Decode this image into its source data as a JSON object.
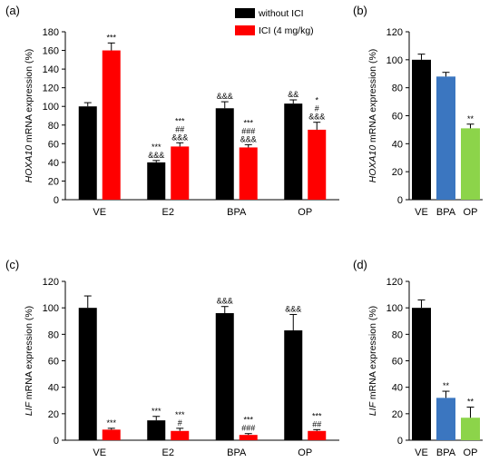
{
  "chart_data": [
    {
      "panel": "(a)",
      "type": "bar",
      "categories": [
        "VE",
        "E2",
        "BPA",
        "OP"
      ],
      "ylabel_italic": "HOXA10",
      "ylabel_rest": " mRNA expression (%)",
      "ylim": [
        0,
        180
      ],
      "yticks": [
        0,
        20,
        40,
        60,
        80,
        100,
        120,
        140,
        160,
        180
      ],
      "series": [
        {
          "name": "without ICI",
          "color": "#000000",
          "values": [
            100,
            40,
            98,
            103
          ],
          "errors": [
            4,
            2,
            7,
            4
          ],
          "marks": [
            "",
            "***\n&&&",
            "&&&",
            "&&"
          ]
        },
        {
          "name": "ICI (4 mg/kg)",
          "color": "#ff0000",
          "values": [
            160,
            57,
            56,
            75
          ],
          "errors": [
            8,
            4,
            3,
            8
          ],
          "marks": [
            "***",
            "***\n##\n&&&",
            "***\n###\n&&&",
            "*\n#\n&&&"
          ]
        }
      ]
    },
    {
      "panel": "(b)",
      "type": "bar",
      "categories": [
        "VE",
        "BPA",
        "OP"
      ],
      "ylabel_italic": "HOXA10",
      "ylabel_rest": " mRNA expression (%)",
      "ylim": [
        0,
        120
      ],
      "yticks": [
        0,
        20,
        40,
        60,
        80,
        100,
        120
      ],
      "series": [
        {
          "values": [
            100,
            88,
            51
          ],
          "errors": [
            4,
            3,
            3
          ],
          "colors": [
            "#000000",
            "#3b76c0",
            "#8cd44a"
          ],
          "marks": [
            "",
            "",
            "**"
          ]
        }
      ]
    },
    {
      "panel": "(c)",
      "type": "bar",
      "categories": [
        "VE",
        "E2",
        "BPA",
        "OP"
      ],
      "ylabel_italic": "LIF",
      "ylabel_rest": " mRNA expression (%)",
      "ylim": [
        0,
        120
      ],
      "yticks": [
        0,
        20,
        40,
        60,
        80,
        100,
        120
      ],
      "series": [
        {
          "name": "without ICI",
          "color": "#000000",
          "values": [
            100,
            15,
            96,
            83
          ],
          "errors": [
            9,
            3,
            5,
            12
          ],
          "marks": [
            "",
            "***",
            "&&&",
            "&&&"
          ]
        },
        {
          "name": "ICI (4 mg/kg)",
          "color": "#ff0000",
          "values": [
            8,
            7,
            4,
            7
          ],
          "errors": [
            1,
            2,
            1,
            1
          ],
          "marks": [
            "***",
            "***\n#",
            "***\n###",
            "***\n##"
          ]
        }
      ]
    },
    {
      "panel": "(d)",
      "type": "bar",
      "categories": [
        "VE",
        "BPA",
        "OP"
      ],
      "ylabel_italic": "LIF",
      "ylabel_rest": " mRNA expression (%)",
      "ylim": [
        0,
        120
      ],
      "yticks": [
        0,
        20,
        40,
        60,
        80,
        100,
        120
      ],
      "series": [
        {
          "values": [
            100,
            32,
            17
          ],
          "errors": [
            6,
            5,
            8
          ],
          "colors": [
            "#000000",
            "#3b76c0",
            "#8cd44a"
          ],
          "marks": [
            "",
            "**",
            "**"
          ]
        }
      ]
    }
  ],
  "legend": [
    {
      "label": "without ICI",
      "color": "#000000"
    },
    {
      "label": "ICI (4 mg/kg)",
      "color": "#ff0000"
    }
  ]
}
